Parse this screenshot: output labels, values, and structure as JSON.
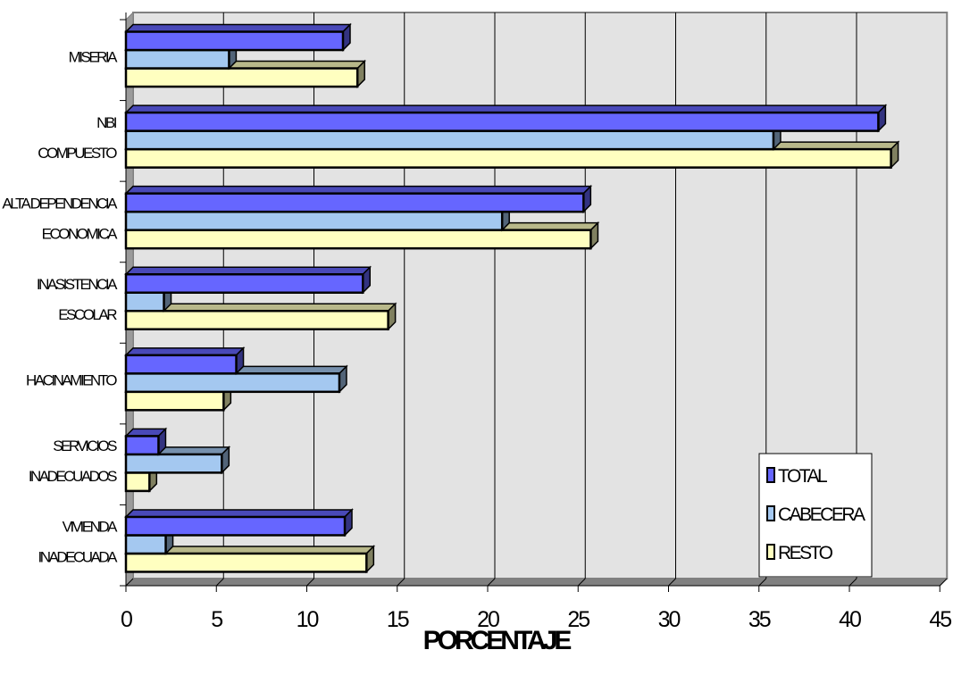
{
  "chart_data": {
    "type": "bar",
    "orientation": "horizontal",
    "three_d": true,
    "categories": [
      [
        "MISERIA"
      ],
      [
        "NBI",
        "COMPUESTO"
      ],
      [
        "ALTA DEPENDENCIA",
        "ECONOMICA"
      ],
      [
        "INASISTENCIA",
        "ESCOLAR"
      ],
      [
        "HACINAMIENTO"
      ],
      [
        "SERVICIOS",
        "INADECUADOS"
      ],
      [
        "VIVIENDA",
        "INADECUADA"
      ]
    ],
    "series": [
      {
        "name": "TOTAL",
        "color": "#6666ff",
        "values": [
          12.0,
          41.6,
          25.3,
          13.1,
          6.1,
          1.8,
          12.1
        ]
      },
      {
        "name": "CABECERA",
        "color": "#a4c8f0",
        "values": [
          5.7,
          35.8,
          20.8,
          2.1,
          11.8,
          5.3,
          2.2
        ]
      },
      {
        "name": "RESTO",
        "color": "#ffffc0",
        "values": [
          12.8,
          42.3,
          25.7,
          14.5,
          5.4,
          1.3,
          13.3
        ]
      }
    ],
    "xlabel": "PORCENTAJE",
    "ylabel": "",
    "xlim": [
      0,
      45
    ],
    "x_ticks": [
      "0",
      "5",
      "10",
      "15",
      "20",
      "25",
      "30",
      "35",
      "40",
      "45"
    ],
    "grid": true,
    "legend_position": "bottom-right",
    "colors": {
      "plot_wall": "#e3e3e3",
      "floor": "#808080",
      "gridline": "#000000"
    }
  }
}
